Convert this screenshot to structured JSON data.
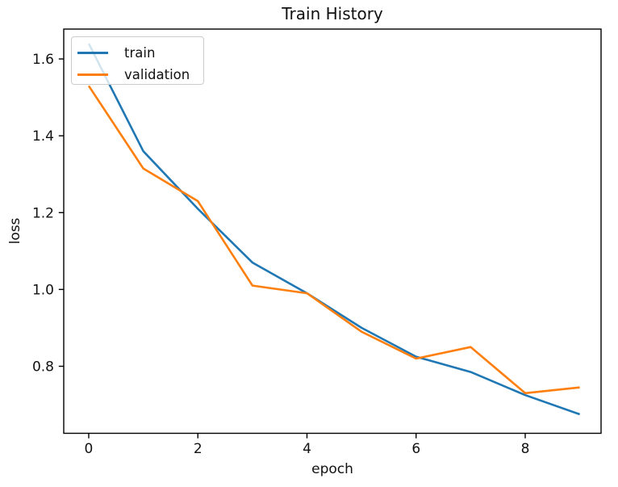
{
  "chart_data": {
    "type": "line",
    "title": "Train History",
    "xlabel": "epoch",
    "ylabel": "loss",
    "x": [
      0,
      1,
      2,
      3,
      4,
      5,
      6,
      7,
      8,
      9
    ],
    "series": [
      {
        "name": "train",
        "color": "#1f77b4",
        "values": [
          1.64,
          1.36,
          1.21,
          1.07,
          0.99,
          0.9,
          0.825,
          0.785,
          0.725,
          0.675
        ]
      },
      {
        "name": "validation",
        "color": "#ff7f0e",
        "values": [
          1.53,
          1.315,
          1.23,
          1.01,
          0.99,
          0.89,
          0.82,
          0.85,
          0.73,
          0.745
        ]
      }
    ],
    "xlim": [
      -0.458,
      9.39
    ],
    "ylim": [
      0.6255,
      1.6778
    ],
    "xticks": {
      "values": [
        0,
        2,
        4,
        6,
        8
      ],
      "labels": [
        "0",
        "2",
        "4",
        "6",
        "8"
      ]
    },
    "yticks": {
      "values": [
        0.8,
        1.0,
        1.2,
        1.4,
        1.6
      ],
      "labels": [
        "0.8",
        "1.0",
        "1.2",
        "1.4",
        "1.6"
      ]
    },
    "grid": false,
    "legend_position": "upper left",
    "axis_color": "#000000",
    "line_width": 2.6
  }
}
